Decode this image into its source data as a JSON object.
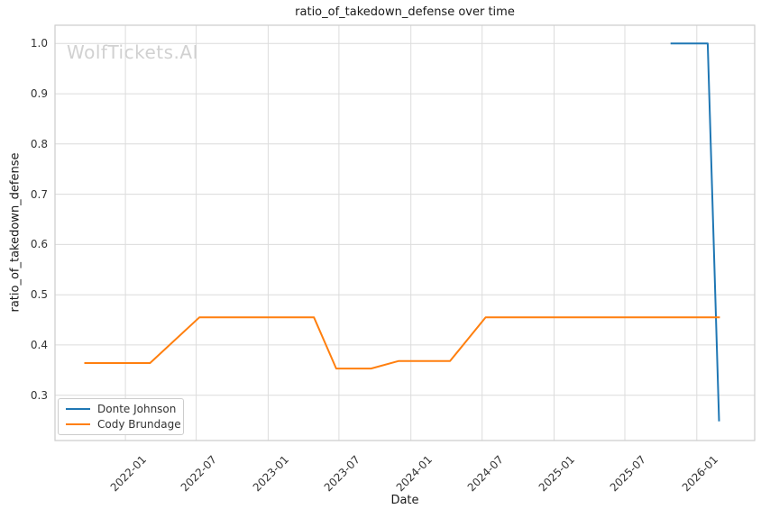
{
  "watermark": {
    "text": "WolfTickets.AI",
    "color": "#d1d1d1"
  },
  "chart_data": {
    "type": "line",
    "title": "ratio_of_takedown_defense over time",
    "xlabel": "Date",
    "ylabel": "ratio_of_takedown_defense",
    "grid": true,
    "background": "#ffffff",
    "axis_colors": {
      "grid": "#dcdcdc",
      "spine": "#cccccc",
      "text": "#333333"
    },
    "legend": {
      "position": "lower left",
      "entries": [
        "Donte Johnson",
        "Cody Brundage"
      ]
    },
    "x_range": [
      "2021-07-05",
      "2026-05-29"
    ],
    "y_range": [
      0.2098,
      1.0364
    ],
    "x_ticks": [
      {
        "date": "2022-01-01",
        "label": "2022-01"
      },
      {
        "date": "2022-07-01",
        "label": "2022-07"
      },
      {
        "date": "2023-01-01",
        "label": "2023-01"
      },
      {
        "date": "2023-07-01",
        "label": "2023-07"
      },
      {
        "date": "2024-01-01",
        "label": "2024-01"
      },
      {
        "date": "2024-07-01",
        "label": "2024-07"
      },
      {
        "date": "2025-01-01",
        "label": "2025-01"
      },
      {
        "date": "2025-07-01",
        "label": "2025-07"
      },
      {
        "date": "2026-01-01",
        "label": "2026-01"
      }
    ],
    "y_ticks": [
      {
        "value": 0.3,
        "label": "0.3"
      },
      {
        "value": 0.4,
        "label": "0.4"
      },
      {
        "value": 0.5,
        "label": "0.5"
      },
      {
        "value": 0.6,
        "label": "0.6"
      },
      {
        "value": 0.7,
        "label": "0.7"
      },
      {
        "value": 0.8,
        "label": "0.8"
      },
      {
        "value": 0.9,
        "label": "0.9"
      },
      {
        "value": 1.0,
        "label": "1.0"
      }
    ],
    "series": [
      {
        "name": "Donte Johnson",
        "color": "#1f77b4",
        "points": [
          [
            "2025-10-26",
            1.0
          ],
          [
            "2026-01-29",
            1.0
          ],
          [
            "2026-02-27",
            0.248
          ]
        ]
      },
      {
        "name": "Cody Brundage",
        "color": "#ff7f0e",
        "points": [
          [
            "2021-09-18",
            0.364
          ],
          [
            "2022-03-05",
            0.364
          ],
          [
            "2022-07-09",
            0.455
          ],
          [
            "2023-04-28",
            0.455
          ],
          [
            "2023-06-24",
            0.353
          ],
          [
            "2023-09-21",
            0.353
          ],
          [
            "2023-11-30",
            0.368
          ],
          [
            "2024-04-10",
            0.368
          ],
          [
            "2024-07-10",
            0.455
          ],
          [
            "2026-03-01",
            0.455
          ]
        ]
      }
    ]
  }
}
